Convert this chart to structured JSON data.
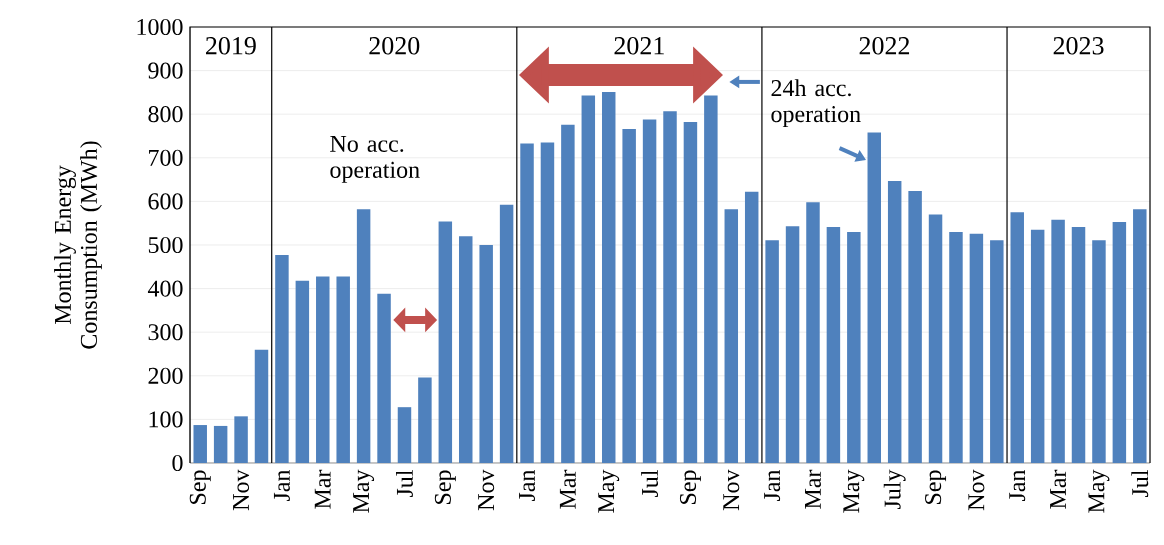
{
  "chart_data": {
    "type": "bar",
    "ylabel": "Monthly Energy Consumption (MWh)",
    "categories": [
      "Sep",
      null,
      "Nov",
      null,
      "Jan",
      null,
      "Mar",
      null,
      "May",
      null,
      "Jul",
      null,
      "Sep",
      null,
      "Nov",
      null,
      "Jan",
      null,
      "Mar",
      null,
      "May",
      null,
      "Jul",
      null,
      "Sep",
      null,
      "Nov",
      null,
      "Jan",
      null,
      "Mar",
      null,
      "May",
      null,
      "July",
      null,
      "Sep",
      null,
      "Nov",
      null,
      "Jan",
      null,
      "Mar",
      null,
      "May",
      null,
      "Jul"
    ],
    "values": [
      87,
      85,
      107,
      260,
      477,
      418,
      428,
      428,
      582,
      388,
      128,
      196,
      554,
      520,
      500,
      592,
      733,
      735,
      776,
      843,
      851,
      766,
      788,
      807,
      782,
      843,
      582,
      622,
      511,
      543,
      598,
      541,
      530,
      758,
      647,
      624,
      570,
      530,
      526,
      511,
      575,
      535,
      558,
      541,
      511,
      553,
      582
    ],
    "color": "#4f81bd",
    "ylim": [
      0,
      1000
    ],
    "yticks": [
      0,
      100,
      200,
      300,
      400,
      500,
      600,
      700,
      800,
      900,
      1000
    ],
    "grid": "y",
    "annotations": [
      "2019",
      "2020",
      "2021",
      "2022",
      "2023",
      "No acc. operation",
      "24h acc. operation"
    ]
  }
}
